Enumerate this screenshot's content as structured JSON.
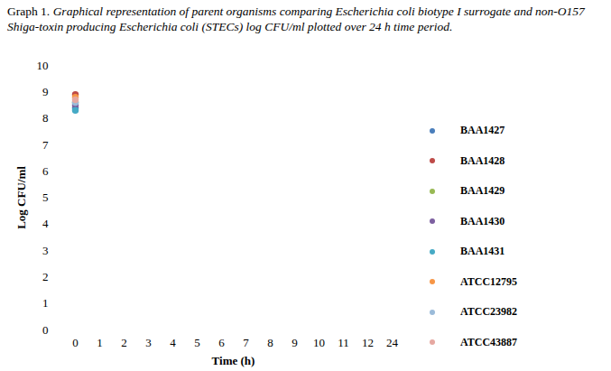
{
  "chart_data": {
    "type": "scatter",
    "title": "Graph 1.",
    "subtitle": "Graphical representation of parent organisms comparing Escherichia coli biotype I surrogate and non-O157 Shiga-toxin producing Escherichia coli (STECs) log CFU/ml plotted over 24 h time period.",
    "x_label": "Time (h)",
    "y_label": "Log CFU/ml",
    "categories": [
      "0",
      "1",
      "2",
      "3",
      "4",
      "5",
      "6",
      "7",
      "8",
      "9",
      "10",
      "11",
      "12",
      "24"
    ],
    "series": [
      {
        "name": "BAA1427",
        "color": "#4a7ebb",
        "values": [
          8.4,
          null,
          null,
          null,
          null,
          null,
          null,
          null,
          null,
          null,
          null,
          null,
          null,
          null
        ]
      },
      {
        "name": "BAA1428",
        "color": "#be4b48",
        "values": [
          8.9,
          null,
          null,
          null,
          null,
          null,
          null,
          null,
          null,
          null,
          null,
          null,
          null,
          null
        ]
      },
      {
        "name": "BAA1429",
        "color": "#98b954",
        "values": [
          8.6,
          null,
          null,
          null,
          null,
          null,
          null,
          null,
          null,
          null,
          null,
          null,
          null,
          null
        ]
      },
      {
        "name": "BAA1430",
        "color": "#7d60a0",
        "values": [
          8.5,
          null,
          null,
          null,
          null,
          null,
          null,
          null,
          null,
          null,
          null,
          null,
          null,
          null
        ]
      },
      {
        "name": "BAA1431",
        "color": "#46aac5",
        "values": [
          8.3,
          null,
          null,
          null,
          null,
          null,
          null,
          null,
          null,
          null,
          null,
          null,
          null,
          null
        ]
      },
      {
        "name": "ATCC12795",
        "color": "#f79646",
        "values": [
          8.8,
          null,
          null,
          null,
          null,
          null,
          null,
          null,
          null,
          null,
          null,
          null,
          null,
          null
        ]
      },
      {
        "name": "ATCC23982",
        "color": "#9bbbd9",
        "values": [
          8.6,
          null,
          null,
          null,
          null,
          null,
          null,
          null,
          null,
          null,
          null,
          null,
          null,
          null
        ]
      },
      {
        "name": "ATCC43887",
        "color": "#e6a8a1",
        "values": [
          8.7,
          null,
          null,
          null,
          null,
          null,
          null,
          null,
          null,
          null,
          null,
          null,
          null,
          null
        ]
      }
    ],
    "ylim": [
      0,
      10
    ],
    "yticks": [
      0,
      1,
      2,
      3,
      4,
      5,
      6,
      7,
      8,
      9,
      10
    ],
    "grid": false,
    "legend": "right",
    "marker": "circle"
  }
}
